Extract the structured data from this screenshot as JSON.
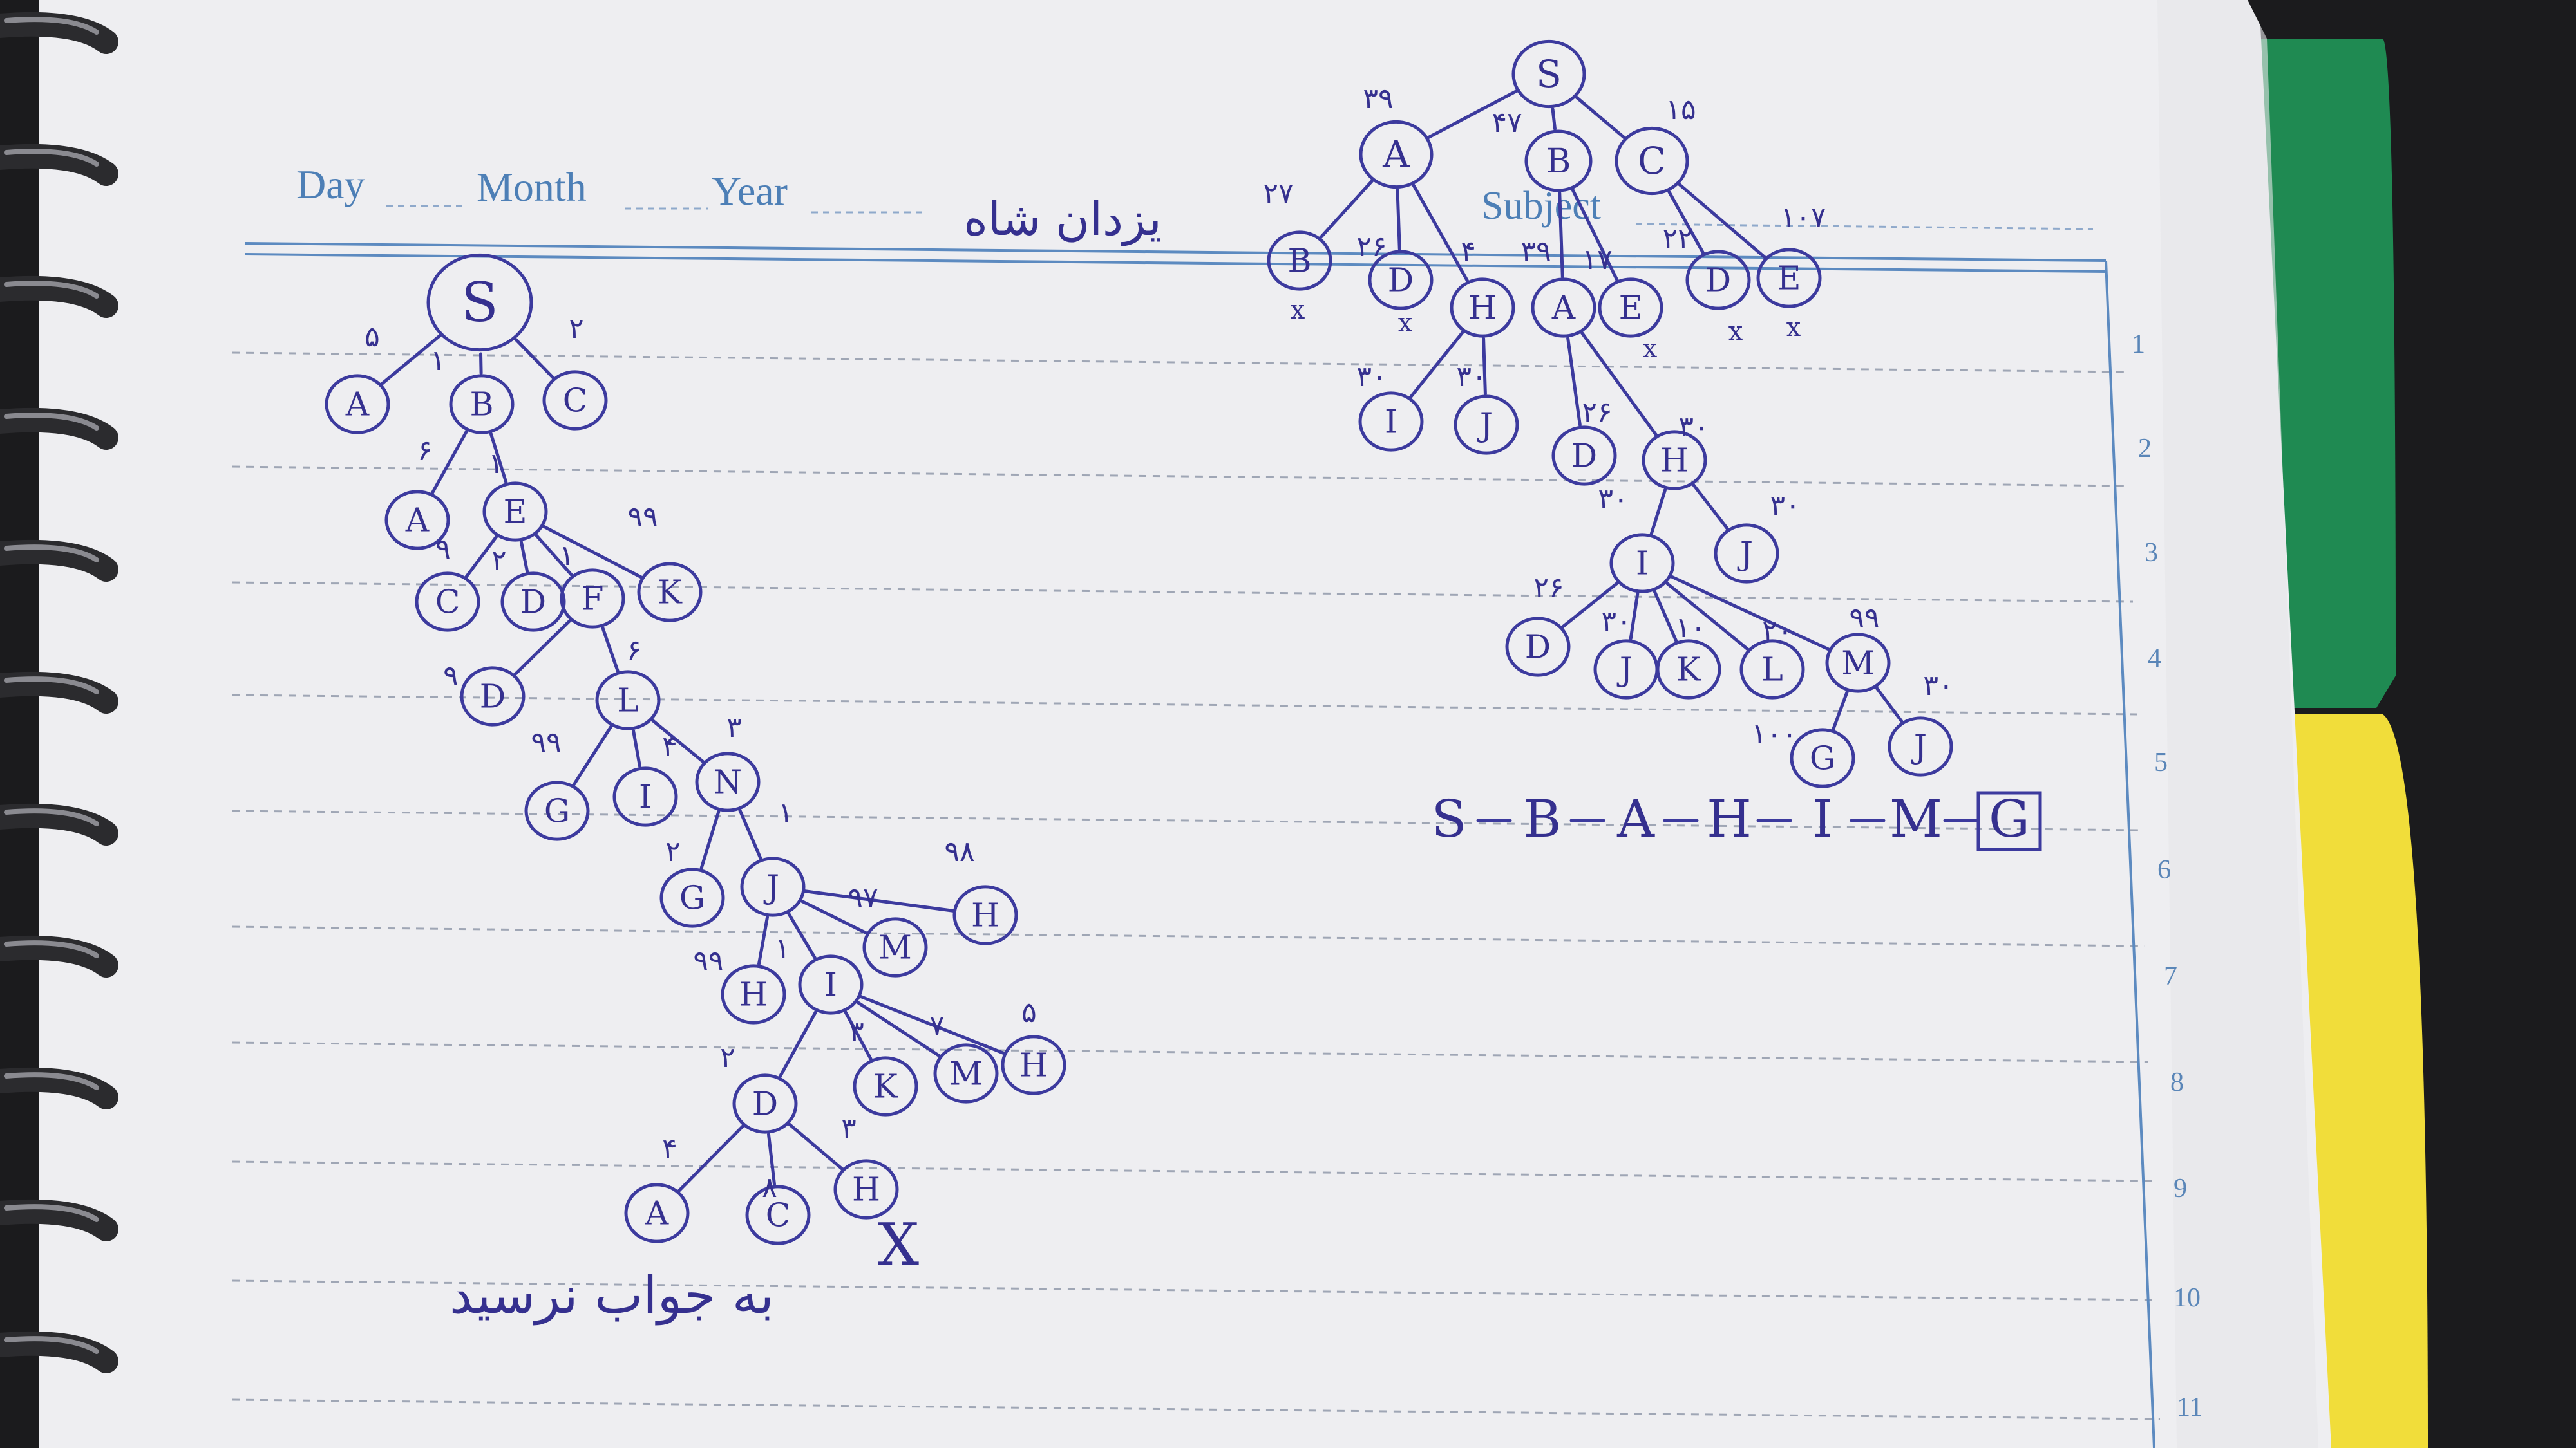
{
  "header": {
    "day": "Day",
    "month": "Month",
    "year": "Year",
    "subject": "Subject",
    "name_ar": "یزدان شاه"
  },
  "line_numbers": [
    "1",
    "2",
    "3",
    "4",
    "5",
    "6",
    "7",
    "8",
    "9",
    "10",
    "11"
  ],
  "left_tree": {
    "nodes": [
      {
        "label": "S"
      },
      {
        "label": "A"
      },
      {
        "label": "B"
      },
      {
        "label": "C"
      },
      {
        "label": "A"
      },
      {
        "label": "E"
      },
      {
        "label": "C"
      },
      {
        "label": "D"
      },
      {
        "label": "F"
      },
      {
        "label": "K"
      },
      {
        "label": "D"
      },
      {
        "label": "L"
      },
      {
        "label": "G"
      },
      {
        "label": "I"
      },
      {
        "label": "N"
      },
      {
        "label": "G"
      },
      {
        "label": "J"
      },
      {
        "label": "M"
      },
      {
        "label": "H"
      },
      {
        "label": "H"
      },
      {
        "label": "I"
      },
      {
        "label": "D"
      },
      {
        "label": "K"
      },
      {
        "label": "M"
      },
      {
        "label": "H"
      },
      {
        "label": "A"
      },
      {
        "label": "C"
      },
      {
        "label": "H"
      }
    ],
    "weights": [
      "۵",
      "۱",
      "۲",
      "۶",
      "۱",
      "۹",
      "۲",
      "۱",
      "۹۹",
      "۹",
      "۶",
      "۹۹",
      "۴",
      "۳",
      "۲",
      "۱",
      "۹۷",
      "۹۸",
      "۹۹",
      "۱",
      "۲",
      "۳",
      "۷",
      "۵",
      "۴",
      "۸",
      "۳"
    ],
    "failure_mark": "X",
    "note_ar": "به جواب نرسید"
  },
  "right_tree": {
    "nodes": [
      {
        "label": "S"
      },
      {
        "label": "A"
      },
      {
        "label": "B"
      },
      {
        "label": "C"
      },
      {
        "label": "B"
      },
      {
        "label": "D"
      },
      {
        "label": "H"
      },
      {
        "label": "A"
      },
      {
        "label": "E"
      },
      {
        "label": "D"
      },
      {
        "label": "E"
      },
      {
        "label": "I"
      },
      {
        "label": "J"
      },
      {
        "label": "D"
      },
      {
        "label": "H"
      },
      {
        "label": "I"
      },
      {
        "label": "J"
      },
      {
        "label": "D"
      },
      {
        "label": "J"
      },
      {
        "label": "K"
      },
      {
        "label": "L"
      },
      {
        "label": "M"
      },
      {
        "label": "G"
      },
      {
        "label": "J"
      }
    ],
    "weights": [
      "۳۹",
      "۴۷",
      "۱۵",
      "۲۷",
      "۲۶",
      "۴",
      "۳۹",
      "۱۷",
      "۲۲",
      "۱۰۷",
      "۳۰",
      "۳۰",
      "۲۶",
      "۳۰",
      "۳۰",
      "۳۰",
      "۲۶",
      "۳۰",
      "۱۰",
      "۲۰",
      "۹۹",
      "۱۰۰",
      "۳۰"
    ],
    "x_marks": [
      "x",
      "x",
      "x",
      "x",
      "x"
    ],
    "result_path": [
      "S",
      "B",
      "A",
      "H",
      "I",
      "M",
      "G"
    ]
  }
}
